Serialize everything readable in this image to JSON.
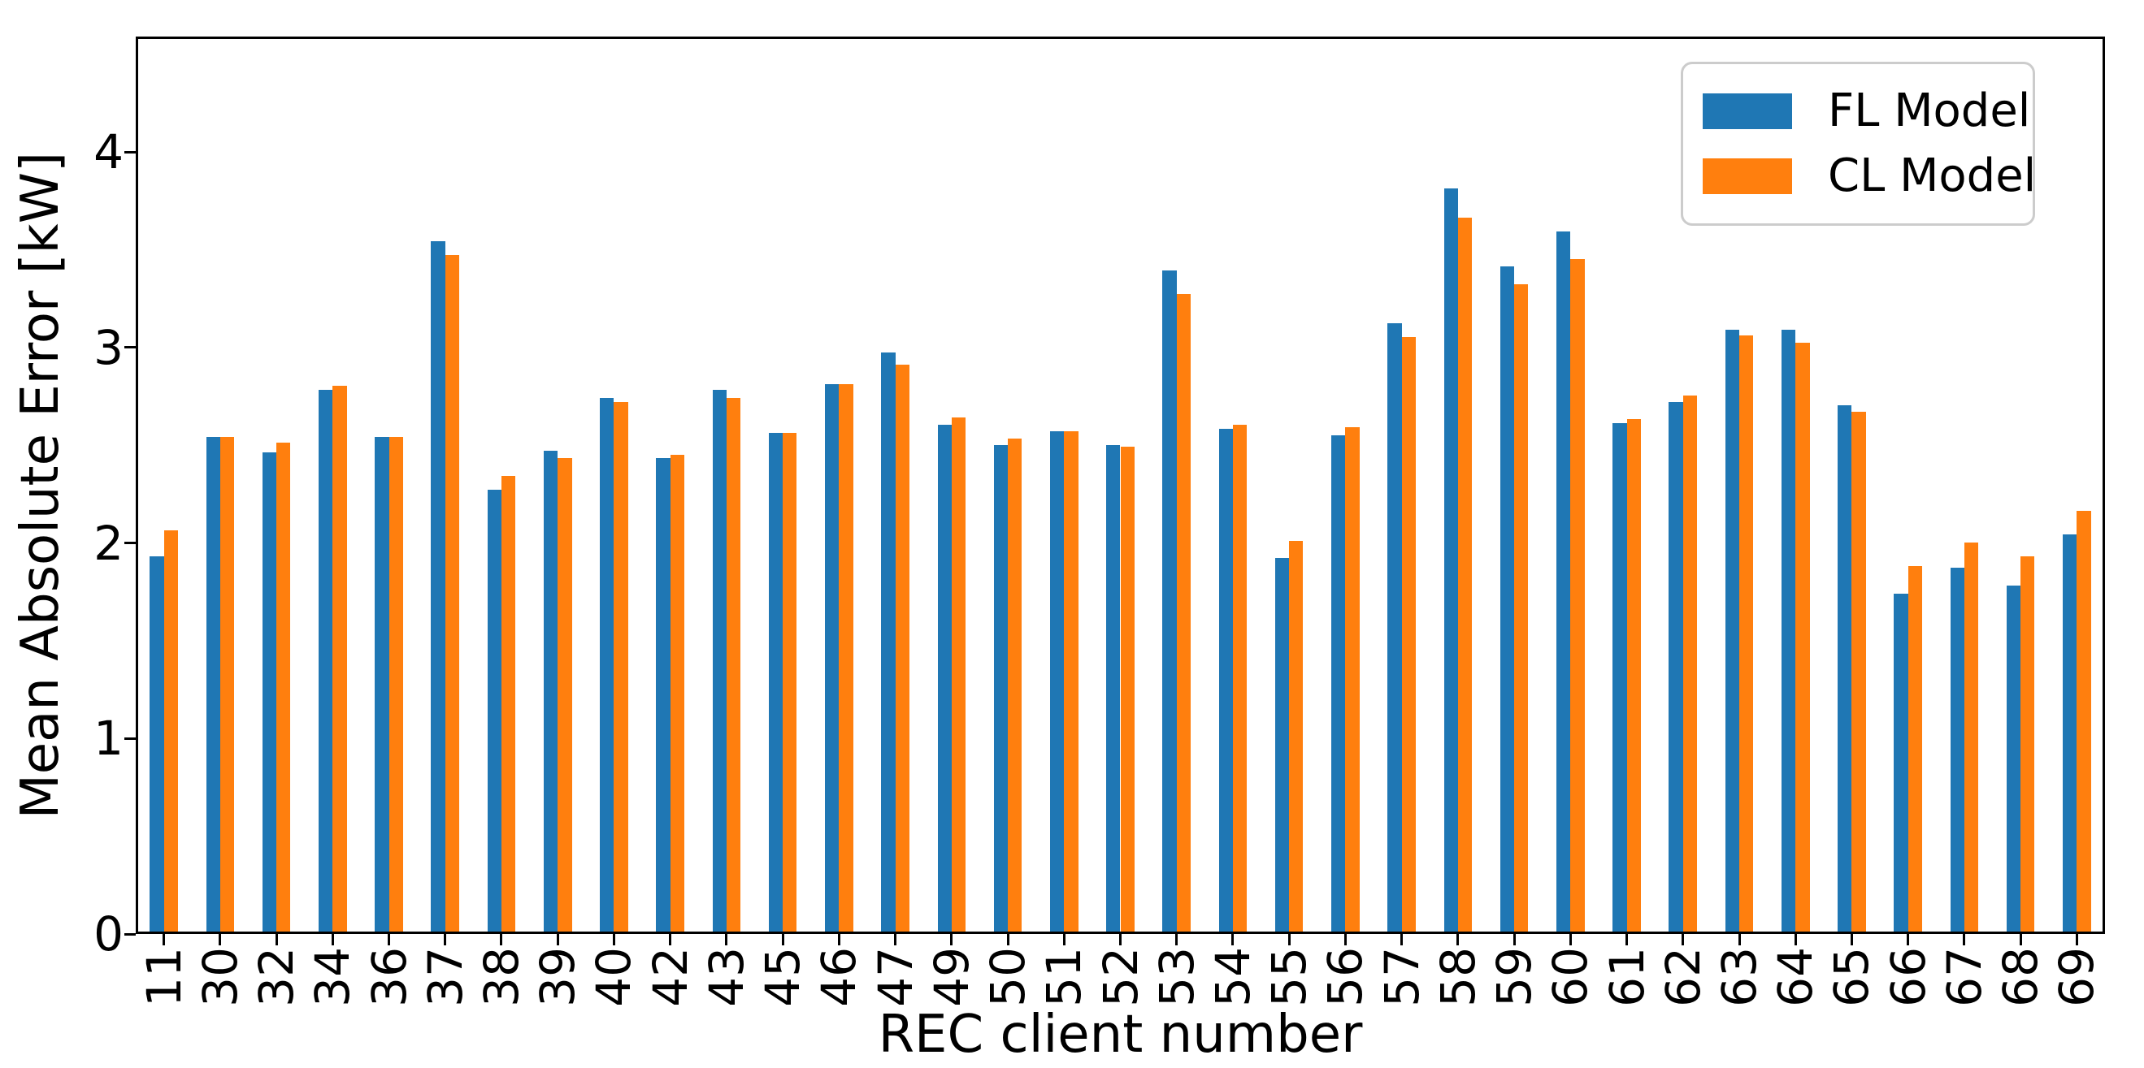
{
  "chart_data": {
    "type": "bar",
    "title": "",
    "xlabel": "REC client number",
    "ylabel": "Mean Absolute Error [kW]",
    "categories": [
      "11",
      "30",
      "32",
      "34",
      "36",
      "37",
      "38",
      "39",
      "40",
      "42",
      "43",
      "45",
      "46",
      "47",
      "49",
      "50",
      "51",
      "52",
      "53",
      "54",
      "55",
      "56",
      "57",
      "58",
      "59",
      "60",
      "61",
      "62",
      "63",
      "64",
      "65",
      "66",
      "67",
      "68",
      "69"
    ],
    "series": [
      {
        "name": "FL Model",
        "color": "#1f77b4",
        "values": [
          1.92,
          2.53,
          2.45,
          2.77,
          2.53,
          3.53,
          2.26,
          2.46,
          2.73,
          2.42,
          2.77,
          2.55,
          2.8,
          2.96,
          2.59,
          2.49,
          2.56,
          2.49,
          3.38,
          2.57,
          1.91,
          2.54,
          3.11,
          3.8,
          3.4,
          3.58,
          2.6,
          2.71,
          3.08,
          3.08,
          2.69,
          1.73,
          1.86,
          1.77,
          2.03
        ]
      },
      {
        "name": "CL Model",
        "color": "#ff7f0e",
        "values": [
          2.05,
          2.53,
          2.5,
          2.79,
          2.53,
          3.46,
          2.33,
          2.42,
          2.71,
          2.44,
          2.73,
          2.55,
          2.8,
          2.9,
          2.63,
          2.52,
          2.56,
          2.48,
          3.26,
          2.59,
          2.0,
          2.58,
          3.04,
          3.65,
          3.31,
          3.44,
          2.62,
          2.74,
          3.05,
          3.01,
          2.66,
          1.87,
          1.99,
          1.92,
          2.15
        ]
      }
    ],
    "ylim": [
      0,
      4.59
    ],
    "yticks": [
      "0",
      "1",
      "2",
      "3",
      "4"
    ],
    "legend_position": "upper right",
    "grid": false,
    "axis_color": "#000000",
    "background_color": "#ffffff"
  }
}
